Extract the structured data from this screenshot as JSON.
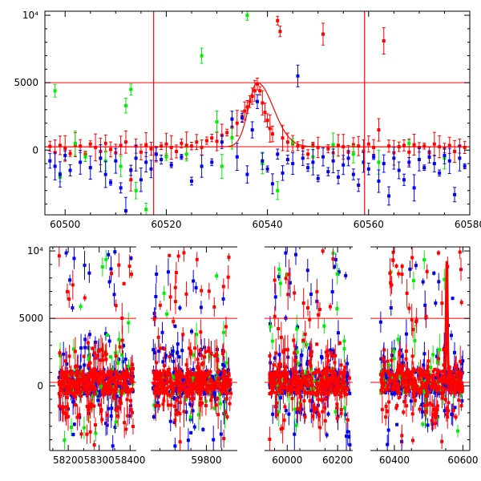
{
  "colors": {
    "red": "#ff0000",
    "green": "#00ee00",
    "blue": "#0000ee",
    "frame": "#000000",
    "refline": "#ff0000"
  },
  "chart_data": [
    {
      "type": "scatter",
      "title": "",
      "xlabel": "",
      "ylabel": "",
      "xlim": [
        60496,
        60580
      ],
      "ylim": [
        -4800,
        10300
      ],
      "xticks": [
        60500,
        60520,
        60540,
        60560,
        60580
      ],
      "xtick_labels": [
        "60500",
        "60520",
        "60540",
        "60560",
        "60580"
      ],
      "yticks": [
        0,
        5000,
        10000
      ],
      "ytick_labels": [
        "0",
        "5000",
        "10⁴"
      ],
      "reference_lines": {
        "horizontal": [
          5000,
          250
        ],
        "vertical": [
          60517.5,
          60559.2
        ]
      },
      "model_curve": {
        "baseline": 250,
        "peak": 5000,
        "peak_x": 60538,
        "rise_width": 2.5,
        "decay_width": 4.5
      },
      "series": [
        {
          "color": "red",
          "points": [
            [
              60497,
              280
            ],
            [
              60498,
              -180
            ],
            [
              60499,
              350
            ],
            [
              60500,
              120
            ],
            [
              60501,
              -250
            ],
            [
              60502,
              400
            ],
            [
              60503,
              300
            ],
            [
              60504,
              -300
            ],
            [
              60505,
              450
            ],
            [
              60506,
              200
            ],
            [
              60507,
              -100
            ],
            [
              60508,
              500
            ],
            [
              60509,
              50
            ],
            [
              60510,
              -200
            ],
            [
              60511,
              350
            ],
            [
              60512,
              600
            ],
            [
              60513,
              -2200
            ],
            [
              60514,
              300
            ],
            [
              60515,
              -150
            ],
            [
              60516,
              400
            ],
            [
              60517,
              100
            ],
            [
              60518,
              -300
            ],
            [
              60519,
              300
            ],
            [
              60520,
              450
            ],
            [
              60521,
              200
            ],
            [
              60522,
              -100
            ],
            [
              60523,
              500
            ],
            [
              60524,
              350
            ],
            [
              60525,
              300
            ],
            [
              60526,
              600
            ],
            [
              60527,
              200
            ],
            [
              60528,
              700
            ],
            [
              60529,
              900
            ],
            [
              60530,
              650
            ],
            [
              60531,
              1100
            ],
            [
              60532,
              1300
            ],
            [
              60533,
              1700
            ],
            [
              60534,
              2000
            ],
            [
              60535,
              2500
            ],
            [
              60535.5,
              2900
            ],
            [
              60536,
              3200
            ],
            [
              60536.5,
              3600
            ],
            [
              60537,
              4000
            ],
            [
              60537.5,
              4400
            ],
            [
              60538,
              4900
            ],
            [
              60538.5,
              4400
            ],
            [
              60539,
              3500
            ],
            [
              60539.5,
              2800
            ],
            [
              60540,
              2200
            ],
            [
              60540.5,
              1600
            ],
            [
              60541,
              1200
            ],
            [
              60542,
              9600
            ],
            [
              60542.5,
              8800
            ],
            [
              60543,
              900
            ],
            [
              60544,
              600
            ],
            [
              60545,
              500
            ],
            [
              60546,
              300
            ],
            [
              60547,
              200
            ],
            [
              60548,
              -300
            ],
            [
              60549,
              400
            ],
            [
              60550,
              200
            ],
            [
              60551,
              8600
            ],
            [
              60552,
              100
            ],
            [
              60553,
              -200
            ],
            [
              60554,
              350
            ],
            [
              60555,
              250
            ],
            [
              60556,
              -150
            ],
            [
              60557,
              400
            ],
            [
              60558,
              300
            ],
            [
              60559,
              -100
            ],
            [
              60560,
              450
            ],
            [
              60561,
              200
            ],
            [
              60562,
              1500
            ],
            [
              60563,
              8100
            ],
            [
              60564,
              300
            ],
            [
              60565,
              -200
            ],
            [
              60566,
              250
            ],
            [
              60567,
              350
            ],
            [
              60568,
              -150
            ],
            [
              60569,
              400
            ],
            [
              60570,
              200
            ],
            [
              60571,
              300
            ],
            [
              60572,
              -200
            ],
            [
              60573,
              450
            ],
            [
              60574,
              250
            ],
            [
              60575,
              150
            ],
            [
              60576,
              350
            ],
            [
              60577,
              -100
            ],
            [
              60578,
              300
            ],
            [
              60579,
              200
            ]
          ]
        },
        {
          "color": "green",
          "points": [
            [
              60498,
              4400
            ],
            [
              60499,
              -2000
            ],
            [
              60502,
              500
            ],
            [
              60504,
              -500
            ],
            [
              60508,
              -800
            ],
            [
              60511,
              -1200
            ],
            [
              60512,
              3300
            ],
            [
              60513,
              4500
            ],
            [
              60514,
              -3000
            ],
            [
              60516,
              -4400
            ],
            [
              60520,
              -500
            ],
            [
              60524,
              -300
            ],
            [
              60527,
              7000
            ],
            [
              60530,
              2100
            ],
            [
              60531,
              -1200
            ],
            [
              60533,
              900
            ],
            [
              60536,
              10000
            ],
            [
              60539,
              -1000
            ],
            [
              60542,
              -3000
            ],
            [
              60545,
              600
            ],
            [
              60549,
              -500
            ],
            [
              60553,
              400
            ],
            [
              60557,
              -300
            ],
            [
              60562,
              -900
            ],
            [
              60568,
              500
            ],
            [
              60575,
              -600
            ]
          ]
        },
        {
          "color": "blue",
          "points": [
            [
              60497,
              -800
            ],
            [
              60498,
              -1200
            ],
            [
              60499,
              -1800
            ],
            [
              60500,
              -400
            ],
            [
              60501,
              -1500
            ],
            [
              60503,
              -900
            ],
            [
              60505,
              -1300
            ],
            [
              60507,
              -600
            ],
            [
              60508,
              -1800
            ],
            [
              60509,
              -2400
            ],
            [
              60510,
              -800
            ],
            [
              60511,
              -2800
            ],
            [
              60512,
              -4500
            ],
            [
              60513,
              -1500
            ],
            [
              60514,
              -600
            ],
            [
              60515,
              -2200
            ],
            [
              60516,
              -900
            ],
            [
              60517,
              -1400
            ],
            [
              60518,
              -300
            ],
            [
              60519,
              -700
            ],
            [
              60521,
              -1100
            ],
            [
              60523,
              -500
            ],
            [
              60525,
              -2300
            ],
            [
              60527,
              -1200
            ],
            [
              60529,
              -900
            ],
            [
              60531,
              600
            ],
            [
              60533,
              2300
            ],
            [
              60534,
              -500
            ],
            [
              60535,
              2400
            ],
            [
              60536,
              -1800
            ],
            [
              60537,
              1500
            ],
            [
              60538,
              3600
            ],
            [
              60539,
              -800
            ],
            [
              60540,
              -1400
            ],
            [
              60541,
              -2500
            ],
            [
              60542,
              -300
            ],
            [
              60543,
              -1700
            ],
            [
              60544,
              -700
            ],
            [
              60545,
              -1000
            ],
            [
              60546,
              5500
            ],
            [
              60547,
              -600
            ],
            [
              60548,
              -1300
            ],
            [
              60549,
              -900
            ],
            [
              60550,
              -2100
            ],
            [
              60551,
              -500
            ],
            [
              60552,
              -1600
            ],
            [
              60553,
              -800
            ],
            [
              60554,
              -2000
            ],
            [
              60555,
              -1100
            ],
            [
              60556,
              -600
            ],
            [
              60557,
              -1800
            ],
            [
              60558,
              -2600
            ],
            [
              60559,
              -900
            ],
            [
              60560,
              -1400
            ],
            [
              60561,
              -500
            ],
            [
              60562,
              -2300
            ],
            [
              60563,
              -1000
            ],
            [
              60564,
              -3400
            ],
            [
              60565,
              -600
            ],
            [
              60566,
              -1500
            ],
            [
              60567,
              -2200
            ],
            [
              60568,
              -900
            ],
            [
              60569,
              -2800
            ],
            [
              60570,
              -700
            ],
            [
              60571,
              -1300
            ],
            [
              60572,
              -500
            ],
            [
              60573,
              -1000
            ],
            [
              60574,
              -1700
            ],
            [
              60575,
              -400
            ],
            [
              60576,
              -800
            ],
            [
              60577,
              -3300
            ],
            [
              60578,
              -600
            ],
            [
              60579,
              -1200
            ]
          ]
        }
      ]
    },
    {
      "type": "scatter",
      "title": "",
      "xlabel": "",
      "ylabel": "",
      "ylim": [
        -4800,
        10300
      ],
      "yticks": [
        0,
        5000,
        10000
      ],
      "ytick_labels": [
        "0",
        "5000",
        "10⁴"
      ],
      "reference_lines": {
        "horizontal": [
          5000,
          250
        ]
      },
      "segments": [
        {
          "xlim": [
            58140,
            58420
          ],
          "xticks": [
            58200,
            58300,
            58400
          ],
          "xtick_labels": [
            "58200",
            "58300",
            "58400"
          ],
          "data_range": [
            58170,
            58410
          ]
        },
        {
          "xlim": [
            59620,
            59900
          ],
          "xticks": [
            59800
          ],
          "xtick_labels": [
            "59800"
          ],
          "data_range": [
            59628,
            59880
          ]
        },
        {
          "xlim": [
            59910,
            60260
          ],
          "xticks": [
            60000,
            60200
          ],
          "xtick_labels": [
            "60000",
            "60200"
          ],
          "data_range": [
            59930,
            60250
          ]
        },
        {
          "xlim": [
            60330,
            60620
          ],
          "xticks": [
            60400,
            60600
          ],
          "xtick_labels": [
            "60400",
            "60600"
          ],
          "data_range": [
            60360,
            60600
          ]
        }
      ]
    }
  ]
}
